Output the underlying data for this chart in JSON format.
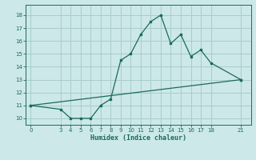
{
  "xlabel": "Humidex (Indice chaleur)",
  "bg_color": "#cce8e8",
  "grid_color": "#aacccc",
  "line_color": "#1a6b5a",
  "line1_x": [
    0,
    3,
    4,
    5,
    6,
    7,
    8,
    9,
    10,
    11,
    12,
    13,
    14,
    15,
    16,
    17,
    18,
    21
  ],
  "line1_y": [
    11.0,
    10.7,
    10.0,
    10.0,
    10.0,
    11.0,
    11.5,
    14.5,
    15.0,
    16.5,
    17.5,
    18.0,
    15.8,
    16.5,
    14.8,
    15.3,
    14.3,
    13.0
  ],
  "line2_x": [
    0,
    21
  ],
  "line2_y": [
    11.0,
    13.0
  ],
  "xticks": [
    0,
    3,
    4,
    5,
    6,
    7,
    8,
    9,
    10,
    11,
    12,
    13,
    14,
    15,
    16,
    17,
    18,
    21
  ],
  "yticks": [
    10,
    11,
    12,
    13,
    14,
    15,
    16,
    17,
    18
  ],
  "xlim": [
    -0.5,
    22
  ],
  "ylim": [
    9.5,
    18.8
  ]
}
